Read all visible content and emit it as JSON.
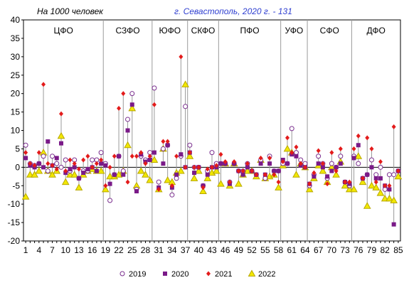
{
  "chart_data": {
    "type": "scatter",
    "title_left": "На 1000 человек",
    "title_right": "г. Севастополь, 2020 г. - 131",
    "ylim": [
      -20,
      40
    ],
    "yticks": [
      -20,
      -15,
      -10,
      -5,
      0,
      5,
      10,
      15,
      20,
      25,
      30,
      35,
      40
    ],
    "xlim": [
      0.5,
      85.5
    ],
    "xticks": [
      1,
      4,
      7,
      10,
      13,
      16,
      19,
      22,
      25,
      28,
      31,
      34,
      37,
      40,
      43,
      46,
      49,
      52,
      55,
      58,
      61,
      64,
      67,
      70,
      73,
      76,
      79,
      82,
      85
    ],
    "grid": "vertical separators between districts",
    "legend_position": "bottom",
    "districts": [
      {
        "name": "ЦФО",
        "x_from": 1,
        "x_to": 18
      },
      {
        "name": "СЗФО",
        "x_from": 19,
        "x_to": 29
      },
      {
        "name": "ЮФО",
        "x_from": 30,
        "x_to": 37
      },
      {
        "name": "СКФО",
        "x_from": 38,
        "x_to": 44
      },
      {
        "name": "ПФО",
        "x_from": 45,
        "x_to": 58
      },
      {
        "name": "УФО",
        "x_from": 59,
        "x_to": 64
      },
      {
        "name": "СФО",
        "x_from": 65,
        "x_to": 74
      },
      {
        "name": "ДФО",
        "x_from": 75,
        "x_to": 85
      }
    ],
    "colors": {
      "s2019": "#7a2e8e",
      "s2020": "#7a1a88",
      "s2021": "#e31b1b",
      "s2022": "#f2e800",
      "s2022_edge": "#b8a800",
      "bar": "#9a9a9a"
    },
    "series": [
      {
        "name": "2019",
        "marker": "circle-open",
        "values": [
          6,
          1,
          0.5,
          1,
          3,
          -1,
          3,
          1,
          0,
          2,
          -1,
          2,
          -3,
          -1,
          -1,
          2,
          2,
          4,
          1,
          -9,
          -2,
          3,
          -1,
          13,
          20,
          -6,
          3,
          2,
          4,
          21.5,
          -4,
          5,
          6,
          -7.5,
          -3,
          3,
          16.5,
          6,
          0,
          0,
          -5,
          -1,
          4,
          1,
          1,
          1,
          -4,
          1,
          -1,
          -1,
          1,
          -1,
          -2,
          2,
          -3,
          3,
          -1,
          -1,
          1,
          1,
          10.5,
          4,
          2,
          1,
          -5,
          -2,
          3,
          1,
          -3,
          1,
          0,
          3,
          -4,
          -5,
          3,
          1,
          -3,
          -2,
          2,
          -2,
          0,
          -6,
          -2,
          -2,
          -1
        ]
      },
      {
        "name": "2020",
        "marker": "square",
        "values": [
          2.5,
          0.5,
          0,
          1,
          0,
          7,
          0.5,
          2.5,
          6.5,
          -1.5,
          -0.5,
          0,
          -3,
          -1.5,
          -0.5,
          0,
          -1,
          1,
          0.5,
          -4.5,
          -2,
          3,
          -2,
          10,
          17,
          -6.5,
          3.5,
          1.5,
          2,
          4,
          -5.5,
          1,
          6,
          -5.5,
          -2,
          3.5,
          0,
          4,
          -1.5,
          0,
          -5,
          -2,
          0,
          0,
          1,
          1,
          -4.5,
          1,
          -1,
          -2,
          0,
          -1,
          -2,
          1,
          -2,
          1,
          -1,
          -1,
          2,
          1,
          3.5,
          3,
          0.5,
          0,
          -4.5,
          -2.5,
          1,
          0,
          -2.5,
          -1,
          0,
          1,
          -4,
          -4.5,
          2.5,
          6,
          -3,
          -2,
          0,
          -3,
          -3,
          -5,
          -6,
          -15.5,
          -1
        ]
      },
      {
        "name": "2021",
        "marker": "diamond",
        "values": [
          4,
          1,
          0.5,
          4,
          22.5,
          1,
          0.5,
          -0.5,
          14.5,
          -1,
          2,
          1,
          -0.5,
          2,
          3,
          0,
          1,
          2,
          -5,
          0,
          3,
          16,
          20,
          -4,
          3,
          3,
          4,
          1,
          3,
          17,
          -6,
          7,
          7,
          -5,
          3,
          30,
          0,
          4,
          0,
          0,
          -5.5,
          -0.5,
          0,
          0.5,
          3.5,
          1.5,
          -4,
          1.5,
          -1,
          -1,
          1,
          -1,
          -2,
          2.5,
          -2,
          2.5,
          -2,
          -4,
          1.5,
          8,
          4,
          5.5,
          1,
          0,
          -4.5,
          -1.5,
          4.5,
          1,
          -4.5,
          4,
          -1,
          5,
          -4,
          -4,
          5,
          8.5,
          -3,
          8,
          5,
          -4,
          1.5,
          -5,
          -5,
          11,
          -1
        ]
      },
      {
        "name": "2022",
        "marker": "triangle",
        "values": [
          -8,
          -2,
          -2,
          -1,
          4,
          -1,
          -2,
          -1,
          8.5,
          -4,
          -2,
          -2,
          -5.5,
          -2,
          -1,
          -0.5,
          -1,
          -1,
          -6,
          -2.5,
          -2.5,
          -2,
          -1,
          6,
          16,
          -5,
          -1,
          -2,
          -3.5,
          2,
          -6,
          5,
          -3.5,
          -4,
          -1.5,
          -1,
          22.5,
          3,
          -3,
          -1,
          -6.5,
          -3,
          -1.5,
          -1,
          -4.5,
          1,
          -5,
          1,
          -4.5,
          -2,
          -1,
          -1,
          -2.5,
          2,
          -3,
          -2.5,
          -2,
          -5.5,
          0.5,
          5,
          4,
          -2,
          1,
          0,
          -6,
          -3,
          0.5,
          -1,
          -4,
          0,
          -2,
          1.5,
          -5,
          -6,
          -6,
          3,
          -4,
          -10.5,
          -5,
          -5.5,
          -7,
          -8.5,
          -8.5,
          -9,
          -2.5
        ]
      }
    ]
  }
}
